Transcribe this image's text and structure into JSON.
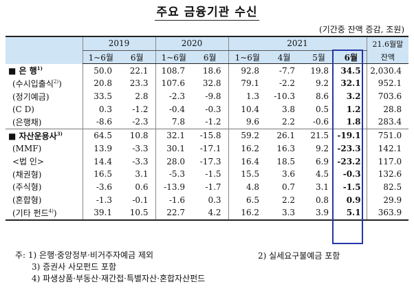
{
  "title": "주요 금융기관 수신",
  "unit": "(기간중 잔액 증감, 조원)",
  "header": {
    "years": [
      "2019",
      "2020",
      "2021"
    ],
    "periods": [
      "1~6월",
      "6월",
      "1~6월",
      "6월",
      "1~6월",
      "4월",
      "5월",
      "6월"
    ],
    "last_col_line1": "21.6월말",
    "last_col_line2": "잔액"
  },
  "rows": [
    {
      "label": "■ 은   행",
      "sup": "1)",
      "values": [
        "50.0",
        "22.1",
        "108.7",
        "18.6",
        "92.8",
        "-7.7",
        "19.8",
        "34.5",
        "2,030.4"
      ]
    },
    {
      "label": "(수시입출식",
      "sup": "2)",
      "label_end": ")",
      "values": [
        "20.8",
        "23.3",
        "107.6",
        "32.8",
        "79.1",
        "-2.2",
        "9.2",
        "32.1",
        "952.1"
      ]
    },
    {
      "label": "(정기예금)",
      "values": [
        "33.5",
        "2.8",
        "-2.3",
        "-9.8",
        "1.3",
        "-10.3",
        "8.6",
        "3.2",
        "703.6"
      ]
    },
    {
      "label": "(C   D)",
      "values": [
        "0.3",
        "-1.2",
        "-0.4",
        "-0.3",
        "10.4",
        "3.8",
        "0.5",
        "1.2",
        "28.8"
      ]
    },
    {
      "label": "(은행채)",
      "values": [
        "-8.6",
        "-2.3",
        "7.8",
        "-1.2",
        "9.6",
        "2.2",
        "-0.6",
        "1.8",
        "283.4"
      ]
    },
    {
      "label": "■ 자산운용사",
      "sup": "3)",
      "values": [
        "64.5",
        "10.8",
        "32.1",
        "-15.8",
        "59.2",
        "26.1",
        "21.5",
        "-19.1",
        "751.0"
      ]
    },
    {
      "label": "(MMF)",
      "values": [
        "13.9",
        "-3.3",
        "30.1",
        "-17.1",
        "16.2",
        "16.3",
        "9.2",
        "-23.3",
        "142.1"
      ]
    },
    {
      "label": "<법  인>",
      "values": [
        "14.4",
        "-3.3",
        "28.0",
        "-17.3",
        "16.4",
        "18.5",
        "6.9",
        "-23.2",
        "117.0"
      ]
    },
    {
      "label": "(채권형)",
      "values": [
        "16.5",
        "3.1",
        "-5.3",
        "-1.5",
        "15.5",
        "3.6",
        "4.5",
        "-0.3",
        "132.6"
      ]
    },
    {
      "label": "(주식형)",
      "values": [
        "-3.6",
        "0.6",
        "-13.9",
        "-1.7",
        "4.8",
        "0.7",
        "3.1",
        "-1.5",
        "82.5"
      ]
    },
    {
      "label": "(혼합형)",
      "values": [
        "-1.3",
        "-0.1",
        "-1.6",
        "0.3",
        "6.5",
        "2.2",
        "0.8",
        "0.9",
        "29.9"
      ]
    },
    {
      "label": "(기타 펀드",
      "sup": "4)",
      "label_end": ")",
      "values": [
        "39.1",
        "10.5",
        "22.7",
        "4.2",
        "16.2",
        "3.3",
        "3.9",
        "5.1",
        "363.9"
      ]
    }
  ],
  "notes": {
    "n1": "주: 1) 은행·중앙정부·비거주자예금 제외",
    "n2": "2) 실세요구불예금 포함",
    "n3": "3) 증권사 사모펀드 포함",
    "n4": "4) 파생상품·부동산·재간접·특별자산·혼합자산펀드"
  },
  "highlight_color": "#2536a8",
  "header_bg": "#cfe4f5"
}
